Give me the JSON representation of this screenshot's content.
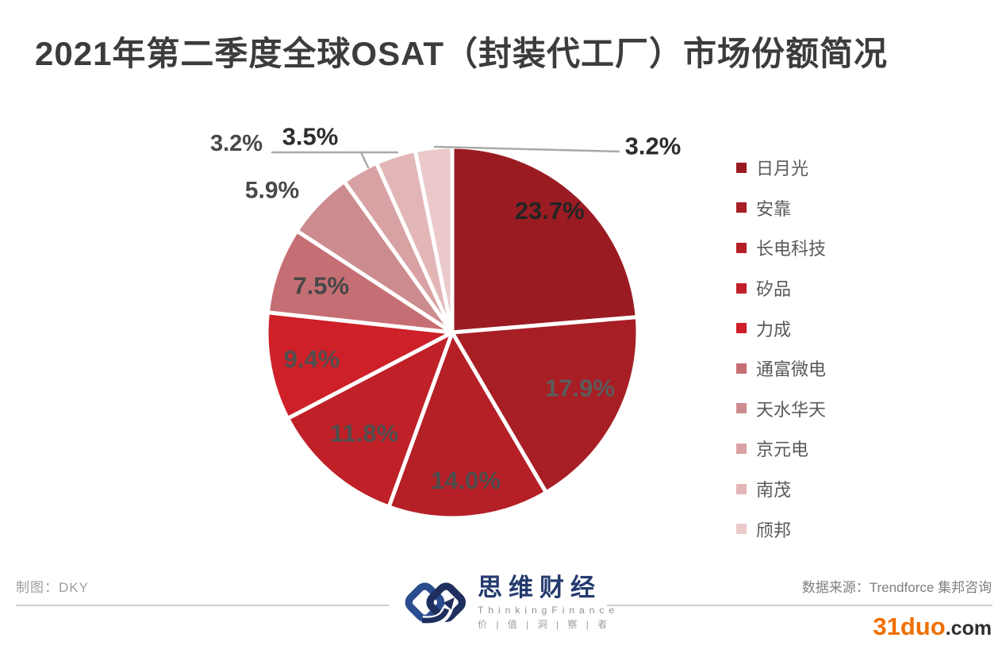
{
  "page": {
    "title": "2021年第二季度全球OSAT（封装代工厂）市场份额简况",
    "background": "#ffffff"
  },
  "chart_data": {
    "type": "pie",
    "title": "2021年第二季度全球OSAT（封装代工厂）市场份额简况",
    "value_unit": "percent",
    "start_angle_deg": 0,
    "direction": "clockwise",
    "legend_position": "right",
    "categories": [
      "日月光",
      "安靠",
      "长电科技",
      "矽品",
      "力成",
      "通富微电",
      "天水华天",
      "京元电",
      "南茂",
      "颀邦"
    ],
    "values": [
      23.7,
      17.9,
      14.0,
      11.8,
      9.4,
      7.5,
      5.9,
      3.2,
      3.5,
      3.2
    ],
    "series": [
      {
        "name": "日月光",
        "value": 23.7,
        "label": "23.7%",
        "color": "#9B1B22",
        "label_color": "#242424",
        "placement": "inside"
      },
      {
        "name": "安靠",
        "value": 17.9,
        "label": "17.9%",
        "color": "#A71E24",
        "label_color": "#5c5c5c",
        "placement": "inside"
      },
      {
        "name": "长电科技",
        "value": 14.0,
        "label": "14.0%",
        "color": "#B51F26",
        "label_color": "#4f4f4f",
        "placement": "inside"
      },
      {
        "name": "矽品",
        "value": 11.8,
        "label": "11.8%",
        "color": "#C02028",
        "label_color": "#4f4f4f",
        "placement": "inside"
      },
      {
        "name": "力成",
        "value": 9.4,
        "label": "9.4%",
        "color": "#CE2028",
        "label_color": "#4f4f4f",
        "placement": "inside"
      },
      {
        "name": "通富微电",
        "value": 7.5,
        "label": "7.5%",
        "color": "#C56F74",
        "label_color": "#474747",
        "placement": "inside"
      },
      {
        "name": "天水华天",
        "value": 5.9,
        "label": "5.9%",
        "color": "#CC8C8F",
        "label_color": "#484848",
        "placement": "outside"
      },
      {
        "name": "京元电",
        "value": 3.2,
        "label": "3.2%",
        "color": "#D8A2A4",
        "label_color": "#484848",
        "placement": "outside"
      },
      {
        "name": "南茂",
        "value": 3.5,
        "label": "3.5%",
        "color": "#E2B6B7",
        "label_color": "#2d2d2d",
        "placement": "outside"
      },
      {
        "name": "颀邦",
        "value": 3.2,
        "label": "3.2%",
        "color": "#EBC9CA",
        "label_color": "#2d2d2d",
        "placement": "outside"
      }
    ]
  },
  "footer": {
    "credit": "制图：DKY",
    "source": "数据来源：Trendforce 集邦咨询",
    "logo": {
      "cn": "思维财经",
      "en": "ThinkingFinance",
      "tagline": "价 | 值 | 洞 | 察 | 者"
    },
    "watermark": {
      "name": "31duo",
      "tld": ".com",
      "accent_color": "#F07000"
    }
  },
  "colors": {
    "leader_line": "#A9A9A9",
    "divider": "#CDCDCD",
    "title_text": "#3C3C3C",
    "legend_text": "#595959"
  }
}
